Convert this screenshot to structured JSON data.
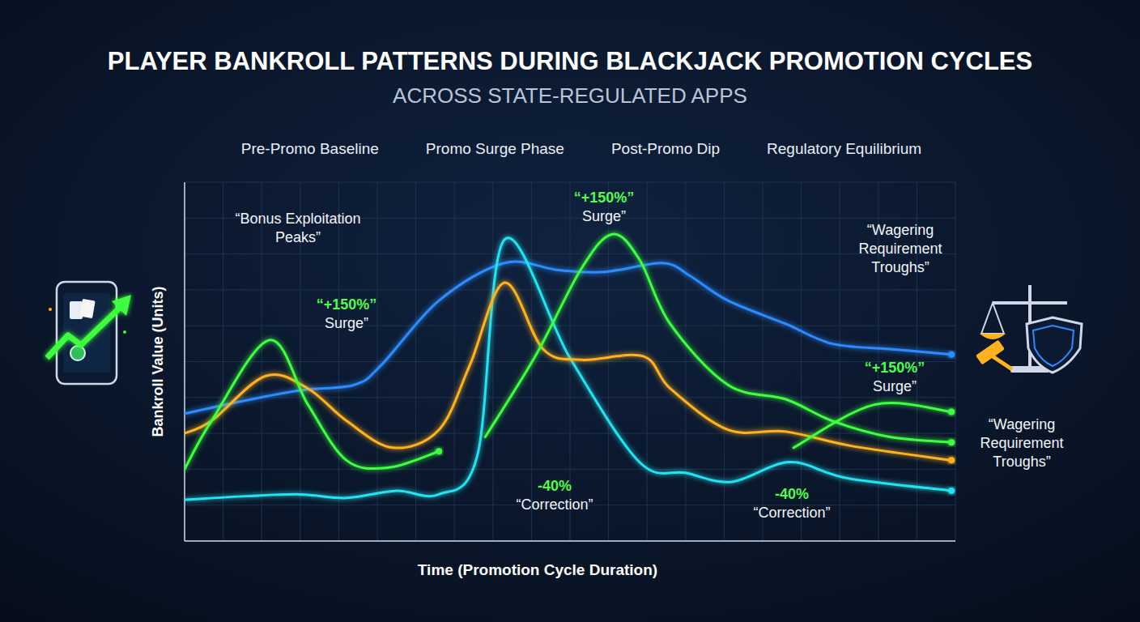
{
  "chart_data": {
    "type": "line",
    "title": "PLAYER BANKROLL PATTERNS DURING BLACKJACK PROMOTION CYCLES",
    "subtitle": "ACROSS STATE-REGULATED APPS",
    "x_label": "Time (Promotion Cycle Duration)",
    "y_label": "Bankroll Value (Units)",
    "xlim": [
      0,
      100
    ],
    "ylim": [
      0,
      100
    ],
    "xticks": [
      0,
      5,
      10,
      15,
      20,
      25,
      30,
      35,
      40,
      45,
      50,
      55,
      60,
      65,
      70,
      75,
      80,
      85,
      90,
      95,
      100
    ],
    "yticks": [
      0,
      10,
      20,
      30,
      40,
      50,
      60,
      70,
      80,
      90,
      100
    ],
    "grid": true,
    "tick_labels": false,
    "legend": "top",
    "annotations": [
      "“Bonus Exploitation Peaks”",
      "“+150%” Surge”",
      "“+150%” Surge”",
      "“+150%” Surge”",
      "-40% “Correction”",
      "-40% “Correction”",
      "“Wagering Requirement Troughs”",
      "“Wagering Requirement Troughs”"
    ],
    "series": [
      {
        "name": "Pre-Promo Baseline",
        "color": "#22e3f2",
        "marker": "end",
        "x": [
          0,
          8,
          15,
          21,
          27.5,
          33,
          38,
          41.5,
          50,
          59,
          65,
          71,
          78.5,
          86,
          99.5
        ],
        "values": [
          11.5,
          12.5,
          13,
          12,
          14,
          13,
          24,
          84,
          51,
          22,
          19,
          16.5,
          22,
          17.5,
          14
        ]
      },
      {
        "name": "Promo Surge Phase",
        "color": "#3dff3d",
        "marker": "end",
        "x": [
          0,
          3.5,
          11,
          16,
          21,
          26.5,
          33,
          null,
          39,
          45.5,
          51.5,
          55.5,
          59,
          63,
          70.5,
          78,
          84,
          91.5,
          99.5,
          null,
          79,
          89.5,
          99.5
        ],
        "values": [
          20,
          33.5,
          56,
          38,
          22.5,
          20.5,
          25,
          null,
          29,
          51.5,
          76,
          85.5,
          78.5,
          60.5,
          43.5,
          39.5,
          33.5,
          29,
          27.5,
          null,
          26,
          38,
          36
        ]
      },
      {
        "name": "Post-Promo Dip",
        "color": "#ffb21e",
        "marker": "end",
        "x": [
          0,
          3.5,
          10.5,
          16,
          21,
          27,
          33,
          37,
          41.5,
          46.5,
          51.5,
          59.5,
          63,
          70.5,
          78,
          86.5,
          99.5
        ],
        "values": [
          30,
          33.5,
          46,
          42.5,
          33.5,
          26,
          31,
          49,
          72,
          53.5,
          50.5,
          51.5,
          42.5,
          31,
          30.5,
          26.5,
          22.5
        ]
      },
      {
        "name": "Regulatory Equilibrium",
        "color": "#2b8cff",
        "marker": "end",
        "x": [
          0,
          7.5,
          15,
          22,
          25.5,
          33,
          41.5,
          48.5,
          54.5,
          62,
          65.5,
          70.5,
          78,
          84,
          91.5,
          99.5
        ],
        "values": [
          35.5,
          39,
          42,
          43.5,
          49,
          67,
          77.5,
          75.5,
          75,
          77.5,
          74,
          67,
          60.5,
          55,
          53.5,
          52
        ]
      }
    ]
  }
}
